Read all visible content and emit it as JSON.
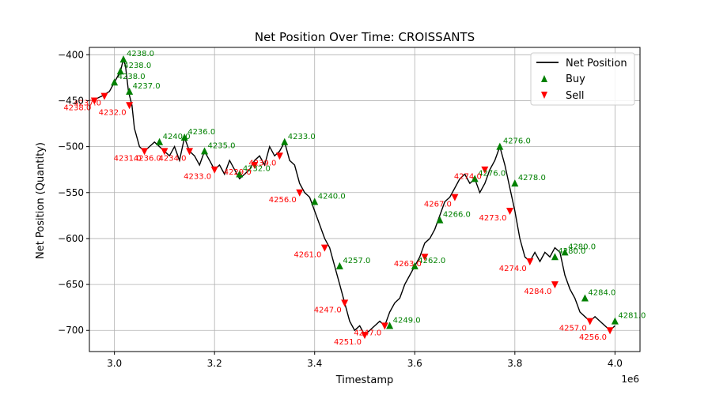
{
  "chart_data": {
    "type": "line",
    "title": "Net Position Over Time: CROISSANTS",
    "xlabel": "Timestamp",
    "ylabel": "Net Position (Quantity)",
    "x_offset_label": "1e6",
    "xlim": [
      2.95,
      4.05
    ],
    "ylim": [
      -723,
      -392
    ],
    "xticks": [
      3.0,
      3.2,
      3.4,
      3.6,
      3.8,
      4.0
    ],
    "xtick_labels": [
      "3.0",
      "3.2",
      "3.4",
      "3.6",
      "3.8",
      "4.0"
    ],
    "yticks": [
      -400,
      -450,
      -500,
      -550,
      -600,
      -650,
      -700
    ],
    "ytick_labels": [
      "−400",
      "−450",
      "−500",
      "−550",
      "−600",
      "−650",
      "−700"
    ],
    "grid": true,
    "legend_position": "top-right",
    "series": [
      {
        "name": "Net Position",
        "color": "#000000",
        "x": [
          2.955,
          2.975,
          2.99,
          3.0,
          3.005,
          3.012,
          3.018,
          3.022,
          3.028,
          3.035,
          3.04,
          3.05,
          3.06,
          3.07,
          3.08,
          3.09,
          3.1,
          3.11,
          3.12,
          3.13,
          3.14,
          3.15,
          3.16,
          3.17,
          3.18,
          3.19,
          3.2,
          3.21,
          3.22,
          3.23,
          3.24,
          3.25,
          3.26,
          3.27,
          3.28,
          3.29,
          3.3,
          3.31,
          3.32,
          3.33,
          3.34,
          3.35,
          3.36,
          3.37,
          3.38,
          3.39,
          3.4,
          3.41,
          3.42,
          3.43,
          3.44,
          3.45,
          3.46,
          3.47,
          3.48,
          3.49,
          3.5,
          3.51,
          3.52,
          3.53,
          3.54,
          3.55,
          3.56,
          3.57,
          3.58,
          3.59,
          3.6,
          3.61,
          3.62,
          3.63,
          3.64,
          3.65,
          3.66,
          3.67,
          3.68,
          3.69,
          3.7,
          3.71,
          3.72,
          3.73,
          3.74,
          3.75,
          3.76,
          3.77,
          3.78,
          3.79,
          3.8,
          3.81,
          3.82,
          3.83,
          3.84,
          3.85,
          3.86,
          3.87,
          3.88,
          3.89,
          3.9,
          3.91,
          3.92,
          3.93,
          3.94,
          3.95,
          3.96,
          3.97,
          3.98,
          3.99,
          4.0
        ],
        "y": [
          -450,
          -445,
          -440,
          -430,
          -425,
          -418,
          -405,
          -412,
          -440,
          -455,
          -480,
          -500,
          -505,
          -500,
          -495,
          -500,
          -505,
          -510,
          -500,
          -515,
          -490,
          -505,
          -510,
          -520,
          -505,
          -515,
          -525,
          -520,
          -530,
          -515,
          -525,
          -535,
          -530,
          -525,
          -515,
          -510,
          -520,
          -500,
          -510,
          -505,
          -495,
          -515,
          -520,
          -540,
          -550,
          -555,
          -570,
          -585,
          -600,
          -610,
          -630,
          -650,
          -670,
          -690,
          -700,
          -695,
          -705,
          -700,
          -695,
          -690,
          -695,
          -680,
          -670,
          -665,
          -650,
          -640,
          -630,
          -620,
          -605,
          -600,
          -590,
          -575,
          -560,
          -555,
          -545,
          -535,
          -530,
          -540,
          -535,
          -550,
          -540,
          -525,
          -515,
          -500,
          -520,
          -545,
          -570,
          -600,
          -620,
          -625,
          -615,
          -625,
          -615,
          -620,
          -610,
          -615,
          -640,
          -655,
          -665,
          -680,
          -685,
          -690,
          -685,
          -690,
          -695,
          -700,
          -695
        ]
      },
      {
        "name": "Buy",
        "color": "#008000",
        "x": [
          3.0,
          3.012,
          3.018,
          3.03,
          3.09,
          3.14,
          3.18,
          3.25,
          3.34,
          3.4,
          3.45,
          3.55,
          3.6,
          3.65,
          3.72,
          3.77,
          3.8,
          3.88,
          3.9,
          3.94,
          4.0
        ],
        "y": [
          -430,
          -418,
          -405,
          -440,
          -495,
          -490,
          -505,
          -530,
          -495,
          -560,
          -630,
          -695,
          -630,
          -580,
          -535,
          -500,
          -540,
          -620,
          -615,
          -665,
          -690
        ],
        "labels": [
          "4238.0",
          "4238.0",
          "4238.0",
          "4237.0",
          "4240.0",
          "4236.0",
          "4235.0",
          "4232.0",
          "4233.0",
          "4240.0",
          "4257.0",
          "4249.0",
          "4262.0",
          "4266.0",
          "4276.0",
          "4276.0",
          "4278.0",
          "4280.0",
          "4280.0",
          "4284.0",
          "4281.0"
        ]
      },
      {
        "name": "Sell",
        "color": "#ff0000",
        "x": [
          2.96,
          2.98,
          3.03,
          3.06,
          3.1,
          3.15,
          3.2,
          3.28,
          3.33,
          3.37,
          3.42,
          3.46,
          3.5,
          3.54,
          3.62,
          3.68,
          3.74,
          3.79,
          3.83,
          3.88,
          3.95,
          3.99
        ],
        "y": [
          -450,
          -445,
          -455,
          -505,
          -505,
          -505,
          -525,
          -520,
          -510,
          -550,
          -610,
          -670,
          -705,
          -695,
          -620,
          -555,
          -525,
          -570,
          -625,
          -650,
          -690,
          -700
        ],
        "labels": [
          "4238.0",
          "4237.0",
          "4232.0",
          "4231.0",
          "4236.0",
          "4234.0",
          "4233.0",
          "4229.0",
          "4239.0",
          "4256.0",
          "4261.0",
          "4247.0",
          "4251.0",
          "4247.0",
          "4263.0",
          "4267.0",
          "4274.0",
          "4273.0",
          "4274.0",
          "4284.0",
          "4257.0",
          "4256.0"
        ]
      }
    ]
  }
}
